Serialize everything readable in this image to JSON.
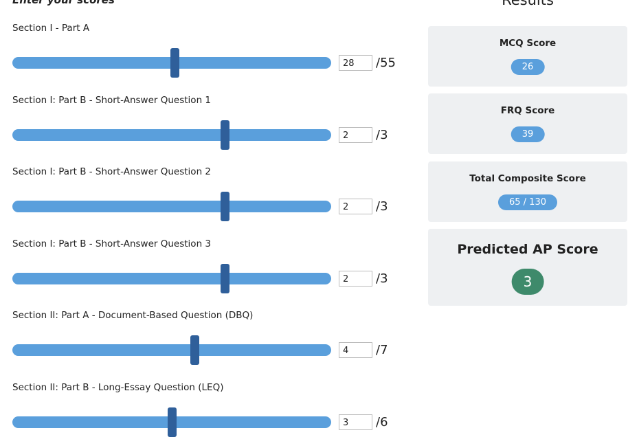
{
  "header": {
    "left_title": "Enter your scores",
    "right_title": "Results"
  },
  "sliders": [
    {
      "label": "Section I - Part A",
      "value": 28,
      "max": {
        "value": 55,
        "label": "/55"
      }
    },
    {
      "label": "Section I: Part B - Short-Answer Question 1",
      "value": 2,
      "max": {
        "value": 3,
        "label": "/3"
      }
    },
    {
      "label": "Section I: Part B - Short-Answer Question 2",
      "value": 2,
      "max": {
        "value": 3,
        "label": "/3"
      }
    },
    {
      "label": "Section I: Part B - Short-Answer Question 3",
      "value": 2,
      "max": {
        "value": 3,
        "label": "/3"
      }
    },
    {
      "label": "Section II: Part A - Document-Based Question (DBQ)",
      "value": 4,
      "max": {
        "value": 7,
        "label": "/7"
      }
    },
    {
      "label": "Section II: Part B - Long-Essay Question (LEQ)",
      "value": 3,
      "max": {
        "value": 6,
        "label": "/6"
      }
    }
  ],
  "results": [
    {
      "title": "MCQ Score",
      "value": "26"
    },
    {
      "title": "FRQ Score",
      "value": "39"
    },
    {
      "title": "Total Composite Score",
      "value": "65 / 130"
    },
    {
      "title": "Predicted AP Score",
      "value": "3"
    }
  ]
}
